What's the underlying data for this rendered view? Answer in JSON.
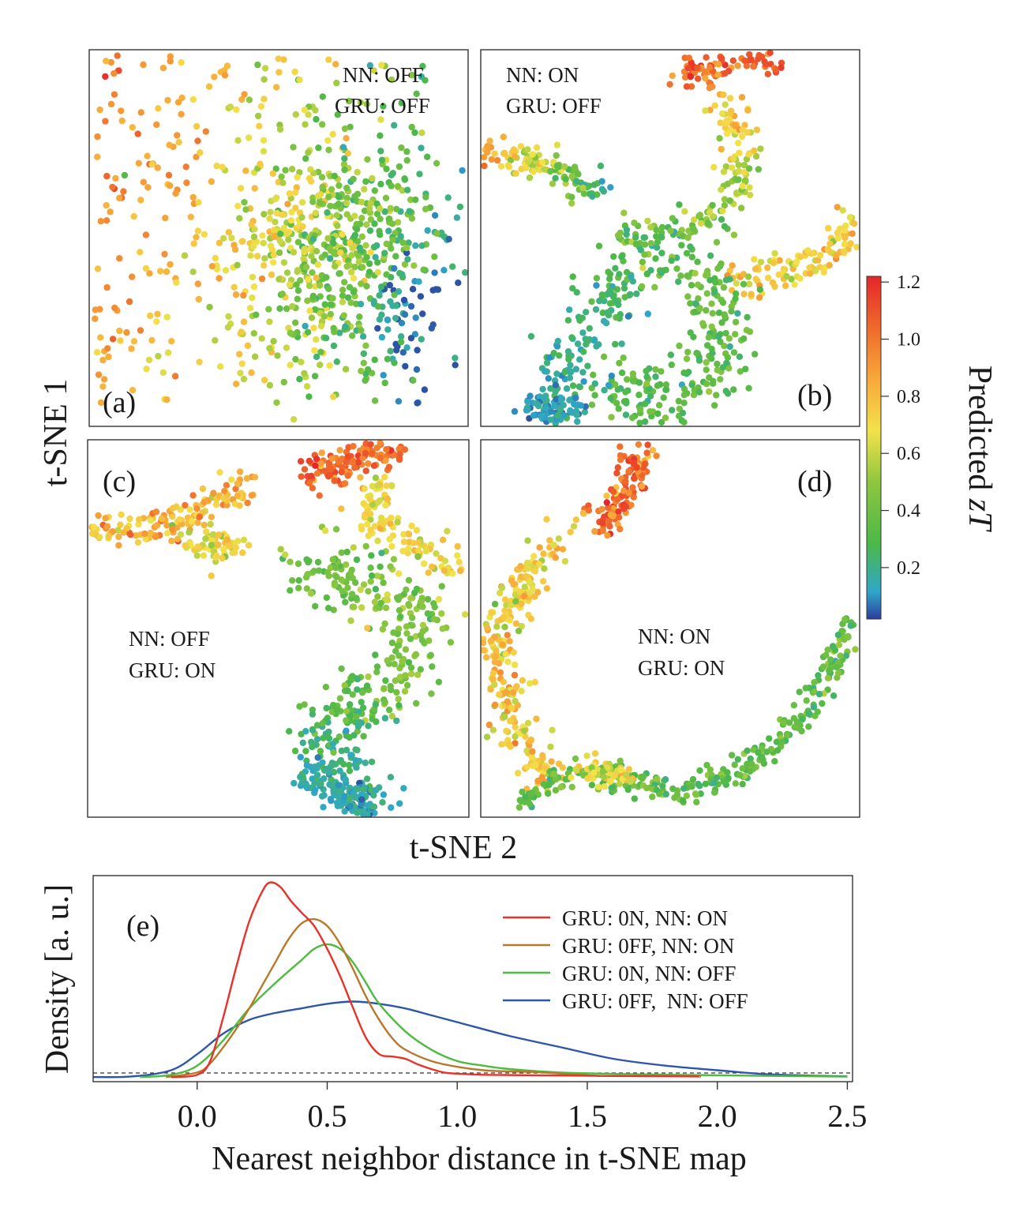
{
  "chart_data": [
    {
      "type": "scatter",
      "panel": "a",
      "panel_label": "(a)",
      "annotation": [
        "NN: OFF",
        "GRU: OFF"
      ],
      "xlabel": "t-SNE 2",
      "ylabel": "t-SNE 1",
      "color_variable": "Predicted zT",
      "description_points": [
        {
          "region": "upper-left",
          "zT": 0.8
        },
        {
          "region": "left",
          "zT": 0.6
        },
        {
          "region": "center",
          "zT": 0.45
        },
        {
          "region": "right",
          "zT": 0.3
        },
        {
          "region": "lower-right",
          "zT": 0.15
        }
      ]
    },
    {
      "type": "scatter",
      "panel": "b",
      "panel_label": "(b)",
      "annotation": [
        "NN: ON",
        "GRU: OFF"
      ],
      "color_variable": "Predicted zT"
    },
    {
      "type": "scatter",
      "panel": "c",
      "panel_label": "(c)",
      "annotation": [
        "NN: OFF",
        "GRU: ON"
      ],
      "color_variable": "Predicted zT"
    },
    {
      "type": "scatter",
      "panel": "d",
      "panel_label": "(d)",
      "annotation": [
        "NN: ON",
        "GRU: ON"
      ],
      "color_variable": "Predicted zT"
    },
    {
      "type": "line",
      "panel": "e",
      "panel_label": "(e)",
      "xlabel": "Nearest neighbor distance in t-SNE map",
      "ylabel": "Density [a. u.]",
      "xlim": [
        -0.4,
        2.52
      ],
      "ylim": [
        -0.02,
        0.88
      ],
      "xticks": [
        0.0,
        0.5,
        1.0,
        1.5,
        2.0,
        2.5
      ],
      "xtick_labels": [
        "0.0",
        "0.5",
        "1.0",
        "1.5",
        "2.0",
        "2.5"
      ],
      "series": [
        {
          "name": "GRU: 0N, NN: ON",
          "color": "#e8312a",
          "x": [
            -0.1,
            0.0,
            0.05,
            0.1,
            0.15,
            0.2,
            0.25,
            0.28,
            0.32,
            0.36,
            0.4,
            0.45,
            0.5,
            0.55,
            0.6,
            0.65,
            0.7,
            0.75,
            0.8,
            0.85,
            0.9,
            0.95,
            1.0,
            1.1,
            1.3,
            1.6,
            1.9,
            1.93
          ],
          "y": [
            0.0,
            0.01,
            0.07,
            0.26,
            0.48,
            0.68,
            0.81,
            0.85,
            0.83,
            0.77,
            0.72,
            0.66,
            0.56,
            0.44,
            0.3,
            0.17,
            0.1,
            0.09,
            0.08,
            0.055,
            0.035,
            0.02,
            0.015,
            0.01,
            0.008,
            0.005,
            0.003,
            0.002
          ]
        },
        {
          "name": "GRU: 0FF, NN: ON",
          "color": "#b8792a",
          "x": [
            -0.12,
            0.0,
            0.05,
            0.1,
            0.15,
            0.2,
            0.25,
            0.3,
            0.35,
            0.4,
            0.45,
            0.5,
            0.55,
            0.6,
            0.65,
            0.7,
            0.75,
            0.8,
            0.9,
            1.0,
            1.1,
            1.2,
            1.3,
            1.4,
            1.55
          ],
          "y": [
            0.0,
            0.02,
            0.06,
            0.13,
            0.21,
            0.3,
            0.4,
            0.5,
            0.6,
            0.67,
            0.69,
            0.66,
            0.58,
            0.47,
            0.35,
            0.25,
            0.17,
            0.12,
            0.07,
            0.045,
            0.03,
            0.025,
            0.022,
            0.015,
            0.005
          ]
        },
        {
          "name": "GRU: 0N, NN: OFF",
          "color": "#4cbb3f",
          "x": [
            -0.22,
            -0.1,
            0.0,
            0.1,
            0.2,
            0.3,
            0.4,
            0.45,
            0.5,
            0.55,
            0.6,
            0.65,
            0.7,
            0.8,
            0.9,
            1.0,
            1.1,
            1.2,
            1.4,
            1.7,
            2.0,
            2.3,
            2.5
          ],
          "y": [
            0.0,
            0.01,
            0.05,
            0.16,
            0.3,
            0.41,
            0.51,
            0.56,
            0.58,
            0.56,
            0.5,
            0.41,
            0.32,
            0.2,
            0.12,
            0.07,
            0.05,
            0.035,
            0.02,
            0.012,
            0.008,
            0.004,
            0.002
          ]
        },
        {
          "name": "GRU: 0FF,  NN: OFF",
          "color": "#2d56a8",
          "x": [
            -0.4,
            -0.25,
            -0.1,
            0.0,
            0.1,
            0.2,
            0.3,
            0.4,
            0.5,
            0.6,
            0.7,
            0.8,
            0.9,
            1.0,
            1.2,
            1.4,
            1.6,
            1.8,
            2.0,
            2.2,
            2.5
          ],
          "y": [
            0.0,
            0.003,
            0.03,
            0.1,
            0.19,
            0.25,
            0.28,
            0.3,
            0.32,
            0.33,
            0.32,
            0.3,
            0.27,
            0.24,
            0.18,
            0.13,
            0.08,
            0.05,
            0.03,
            0.012,
            0.003
          ]
        }
      ]
    }
  ],
  "colorbar": {
    "title": "Predicted zT",
    "title_plain": "Predicted ",
    "title_italic": "zT",
    "ticks": [
      0.2,
      0.4,
      0.6,
      0.8,
      1.0,
      1.2
    ],
    "tick_labels": [
      "0.2",
      "0.4",
      "0.6",
      "0.8",
      "1.0",
      "1.2"
    ],
    "range": [
      0.02,
      1.22
    ],
    "colors": [
      "#2c3e9c",
      "#2fa7c9",
      "#4cb848",
      "#8ec63f",
      "#f3e24a",
      "#f7a83a",
      "#ef6a2c",
      "#e5262a"
    ]
  },
  "labels": {
    "tsne1": "t-SNE 1",
    "tsne2": "t-SNE 2"
  }
}
